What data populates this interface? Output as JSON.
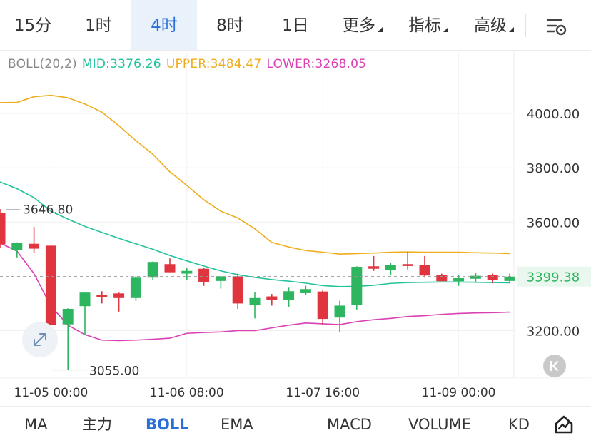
{
  "intervals": {
    "m15": "15分",
    "h1": "1时",
    "h4": "4时",
    "h8": "8时",
    "d1": "1日",
    "more": "更多",
    "indicators": "指标",
    "advanced": "高级"
  },
  "legend": {
    "name": "BOLL(20,2)",
    "mid": "MID:3376.26",
    "upper": "UPPER:3484.47",
    "lower": "LOWER:3268.05"
  },
  "colors": {
    "up": "#2eb55f",
    "down": "#e0343e",
    "mid": "#22c29c",
    "upper": "#eead1a",
    "lower": "#d941b4",
    "accent": "#2a6fd6",
    "current_price": "#2eb55f"
  },
  "chart_data": {
    "type": "candlestick",
    "ylim": [
      3025,
      4145
    ],
    "y_ticks": [
      4000,
      3800,
      3600,
      3200
    ],
    "y_tick_labels": [
      "4000.00",
      "3800.00",
      "3600.00",
      "3200.00"
    ],
    "current_price": 3399.38,
    "current_price_label": "3399.38",
    "x_ticks": [
      {
        "index": 3,
        "label": "11-05 00:00"
      },
      {
        "index": 11,
        "label": "11-06 08:00"
      },
      {
        "index": 19,
        "label": "11-07 16:00"
      },
      {
        "index": 27,
        "label": "11-09 00:00"
      }
    ],
    "annotations": {
      "high": {
        "value": 3646.8,
        "label": "3646.80",
        "index": 0
      },
      "low": {
        "value": 3055.0,
        "label": "3055.00",
        "index": 3
      }
    },
    "candles": [
      {
        "o": 3635,
        "h": 3648,
        "l": 3505,
        "c": 3518
      },
      {
        "o": 3498,
        "h": 3525,
        "l": 3470,
        "c": 3522
      },
      {
        "o": 3520,
        "h": 3582,
        "l": 3488,
        "c": 3502
      },
      {
        "o": 3513,
        "h": 3516,
        "l": 3218,
        "c": 3222
      },
      {
        "o": 3223,
        "h": 3282,
        "l": 3055,
        "c": 3280
      },
      {
        "o": 3290,
        "h": 3340,
        "l": 3185,
        "c": 3340
      },
      {
        "o": 3330,
        "h": 3345,
        "l": 3300,
        "c": 3325
      },
      {
        "o": 3337,
        "h": 3340,
        "l": 3270,
        "c": 3320
      },
      {
        "o": 3320,
        "h": 3400,
        "l": 3310,
        "c": 3395
      },
      {
        "o": 3395,
        "h": 3455,
        "l": 3385,
        "c": 3453
      },
      {
        "o": 3445,
        "h": 3466,
        "l": 3415,
        "c": 3415
      },
      {
        "o": 3410,
        "h": 3432,
        "l": 3385,
        "c": 3420
      },
      {
        "o": 3428,
        "h": 3432,
        "l": 3365,
        "c": 3380
      },
      {
        "o": 3383,
        "h": 3400,
        "l": 3355,
        "c": 3400
      },
      {
        "o": 3400,
        "h": 3410,
        "l": 3280,
        "c": 3300
      },
      {
        "o": 3295,
        "h": 3342,
        "l": 3245,
        "c": 3320
      },
      {
        "o": 3326,
        "h": 3335,
        "l": 3292,
        "c": 3312
      },
      {
        "o": 3312,
        "h": 3358,
        "l": 3288,
        "c": 3345
      },
      {
        "o": 3338,
        "h": 3365,
        "l": 3330,
        "c": 3353
      },
      {
        "o": 3344,
        "h": 3348,
        "l": 3222,
        "c": 3243
      },
      {
        "o": 3248,
        "h": 3310,
        "l": 3193,
        "c": 3292
      },
      {
        "o": 3295,
        "h": 3437,
        "l": 3278,
        "c": 3435
      },
      {
        "o": 3437,
        "h": 3475,
        "l": 3420,
        "c": 3428
      },
      {
        "o": 3423,
        "h": 3450,
        "l": 3405,
        "c": 3442
      },
      {
        "o": 3445,
        "h": 3490,
        "l": 3425,
        "c": 3438
      },
      {
        "o": 3442,
        "h": 3475,
        "l": 3395,
        "c": 3403
      },
      {
        "o": 3406,
        "h": 3410,
        "l": 3385,
        "c": 3382
      },
      {
        "o": 3382,
        "h": 3405,
        "l": 3365,
        "c": 3393
      },
      {
        "o": 3391,
        "h": 3413,
        "l": 3380,
        "c": 3402
      },
      {
        "o": 3406,
        "h": 3410,
        "l": 3375,
        "c": 3386
      },
      {
        "o": 3383,
        "h": 3410,
        "l": 3379,
        "c": 3399
      }
    ],
    "series": [
      {
        "name": "UPPER",
        "values": [
          4040,
          4041,
          4062,
          4067,
          4058,
          4035,
          4005,
          3955,
          3900,
          3850,
          3785,
          3735,
          3682,
          3640,
          3615,
          3575,
          3525,
          3508,
          3495,
          3489,
          3482,
          3484,
          3486,
          3489,
          3490,
          3489,
          3489,
          3489,
          3487,
          3486,
          3484
        ]
      },
      {
        "name": "MID",
        "values": [
          3748,
          3723,
          3690,
          3640,
          3611,
          3584,
          3562,
          3540,
          3520,
          3500,
          3477,
          3457,
          3438,
          3420,
          3406,
          3396,
          3388,
          3382,
          3375,
          3366,
          3362,
          3363,
          3367,
          3374,
          3377,
          3378,
          3379,
          3379,
          3378,
          3377,
          3376
        ]
      },
      {
        "name": "LOWER",
        "values": [
          3523,
          3493,
          3410,
          3290,
          3220,
          3185,
          3165,
          3163,
          3165,
          3168,
          3172,
          3190,
          3193,
          3195,
          3200,
          3200,
          3210,
          3220,
          3228,
          3225,
          3222,
          3233,
          3240,
          3245,
          3252,
          3255,
          3260,
          3263,
          3265,
          3266,
          3268
        ]
      }
    ]
  },
  "bottom": {
    "ma": "MA",
    "main": "主力",
    "boll": "BOLL",
    "ema": "EMA",
    "macd": "MACD",
    "volume": "VOLUME",
    "kd": "KD"
  }
}
